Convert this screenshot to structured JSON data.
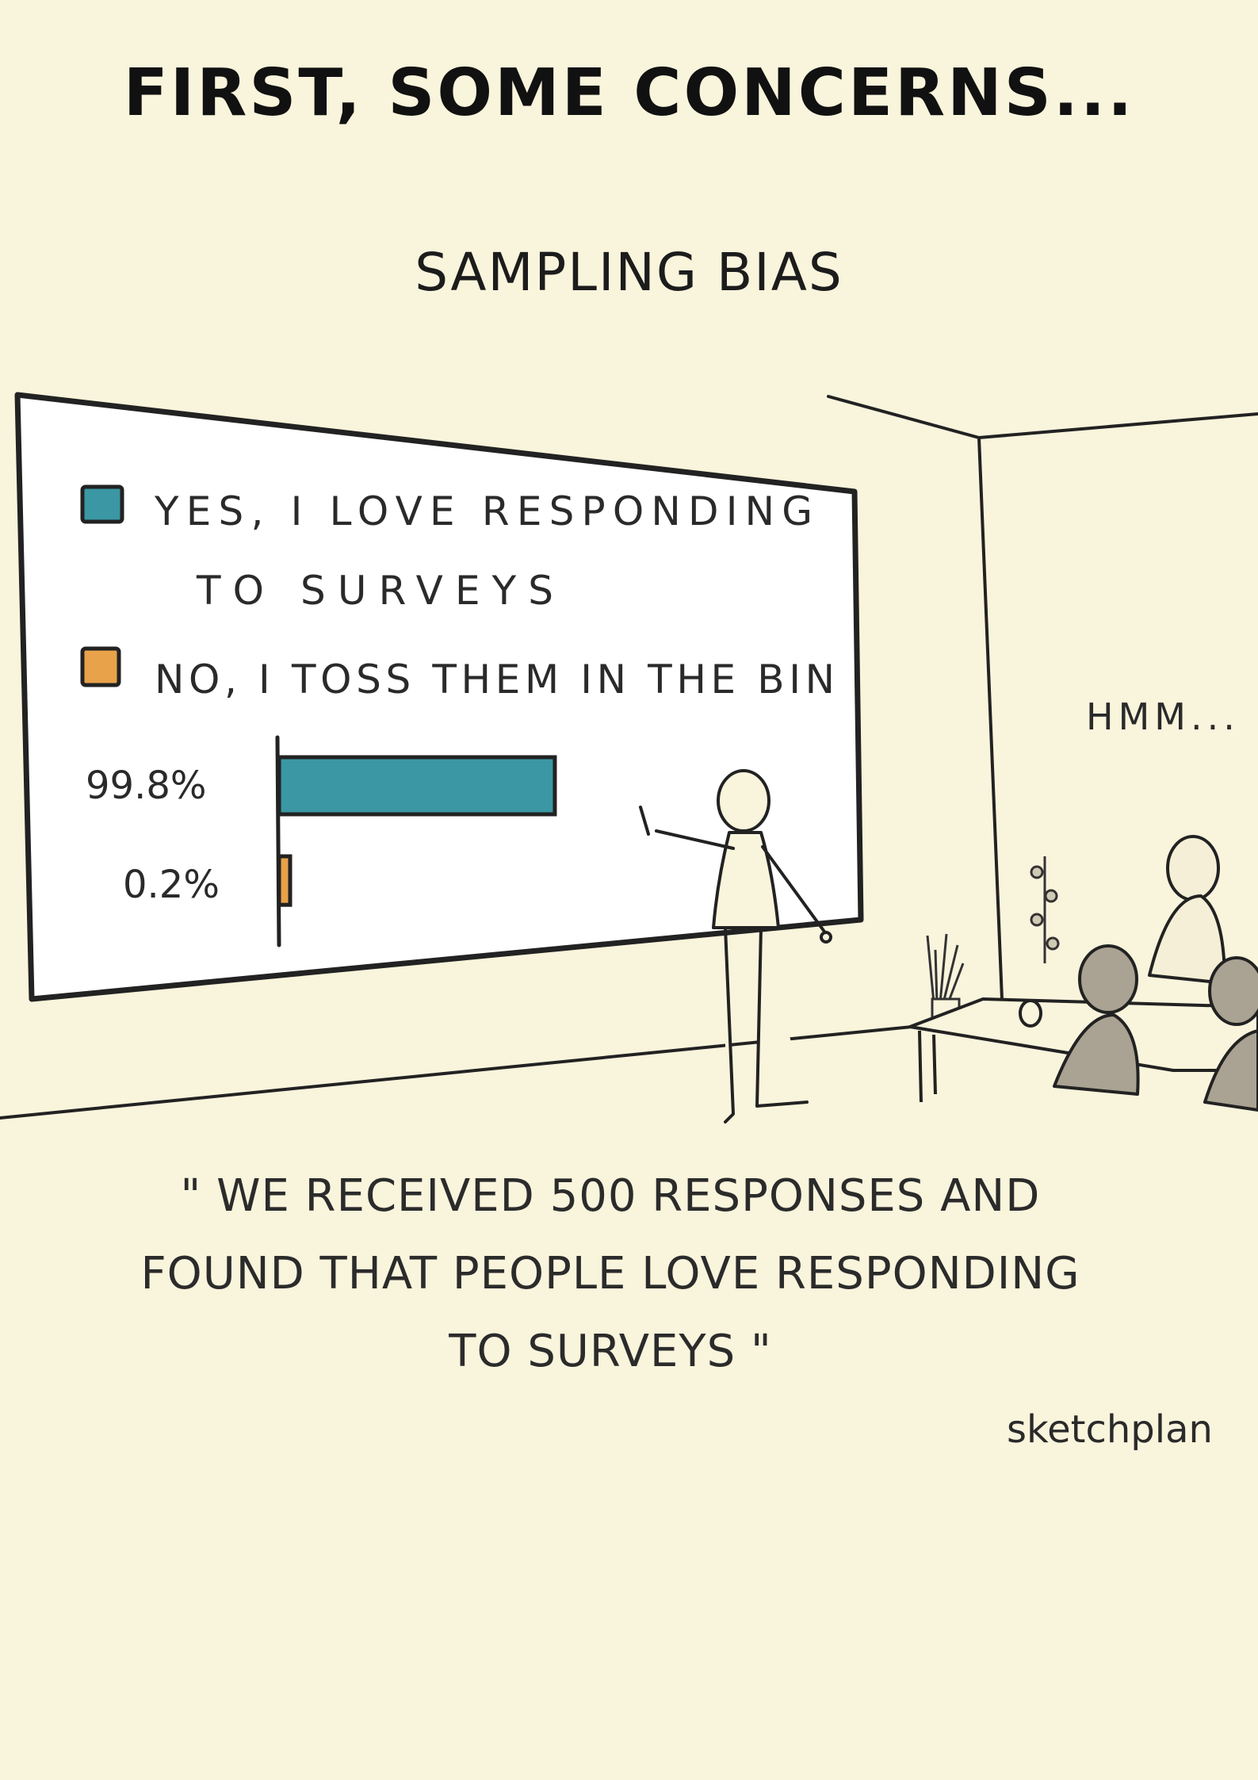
{
  "heading": "FIRST, SOME CONCERNS...",
  "subtitle": "SAMPLING BIAS",
  "board": {
    "legend": [
      {
        "label_line1": "YES, I LOVE RESPONDING",
        "label_line2": "TO SURVEYS",
        "color": "#3a97a3"
      },
      {
        "label_line1": "NO, I TOSS THEM IN THE BIN",
        "label_line2": "",
        "color": "#e8a24a"
      }
    ]
  },
  "chart_data": {
    "type": "bar",
    "orientation": "horizontal",
    "categories": [
      "YES, I LOVE RESPONDING TO SURVEYS",
      "NO, I TOSS THEM IN THE BIN"
    ],
    "values": [
      99.8,
      0.2
    ],
    "value_labels": [
      "99.8%",
      "0.2%"
    ],
    "colors": [
      "#3a97a3",
      "#e8a24a"
    ],
    "xlim": [
      0,
      100
    ]
  },
  "speech": "HMM...",
  "quote_lines": [
    "\" WE RECEIVED 500 RESPONSES AND",
    "FOUND THAT PEOPLE LOVE RESPONDING",
    "TO SURVEYS \""
  ],
  "signature": "sketchplan"
}
